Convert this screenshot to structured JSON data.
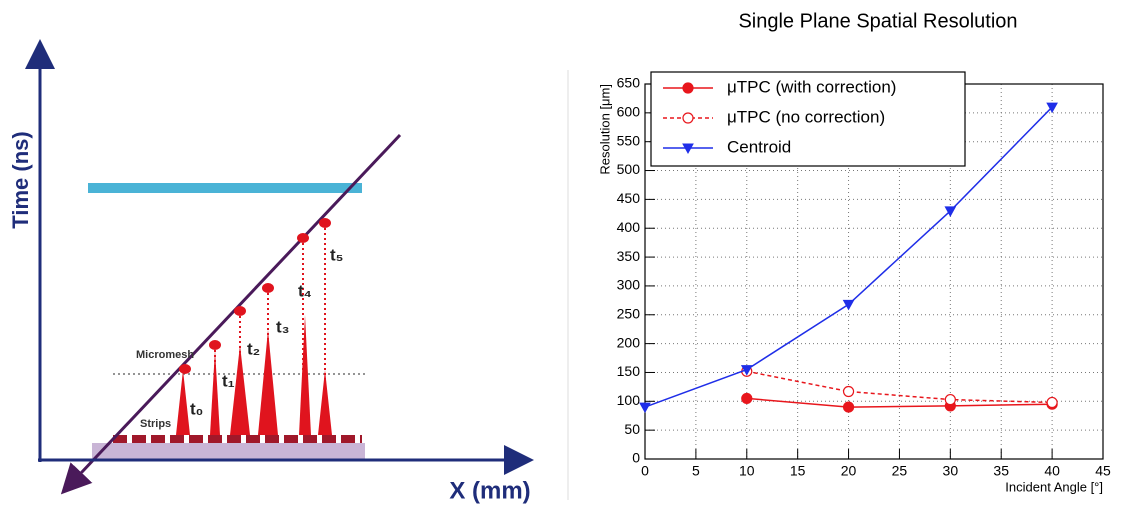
{
  "diagram": {
    "y_axis_label": "Time (ns)",
    "x_axis_label": "X (mm)",
    "micromesh_label": "Micromesh",
    "strips_label": "Strips",
    "time_labels": [
      "t₀",
      "t₁",
      "t₂",
      "t₃",
      "t₄",
      "t₅"
    ]
  },
  "chart_data": {
    "type": "line",
    "title": "Single Plane Spatial Resolution",
    "x_label": "Incident Angle [°]",
    "y_label": "Resolution [μm]",
    "x": [
      0,
      10,
      20,
      30,
      40
    ],
    "series": [
      {
        "name": "μTPC (with correction)",
        "color": "#e8161c",
        "marker": "circle",
        "marker_filled": true,
        "dashed": false,
        "values": [
          null,
          105,
          90,
          92,
          95
        ]
      },
      {
        "name": "μTPC (no correction)",
        "color": "#e8161c",
        "marker": "circle",
        "marker_filled": false,
        "dashed": true,
        "values": [
          null,
          152,
          117,
          103,
          98
        ]
      },
      {
        "name": "Centroid",
        "color": "#1f2ee8",
        "marker": "triangle-down",
        "marker_filled": true,
        "dashed": false,
        "values": [
          90,
          155,
          268,
          430,
          610
        ]
      }
    ],
    "xlim": [
      0,
      45
    ],
    "xticks": [
      0,
      5,
      10,
      15,
      20,
      25,
      30,
      35,
      40,
      45
    ],
    "ylim": [
      0,
      650
    ],
    "yticks": [
      0,
      50,
      100,
      150,
      200,
      250,
      300,
      350,
      400,
      450,
      500,
      550,
      600,
      650
    ],
    "grid": true,
    "legend": "upper left"
  }
}
